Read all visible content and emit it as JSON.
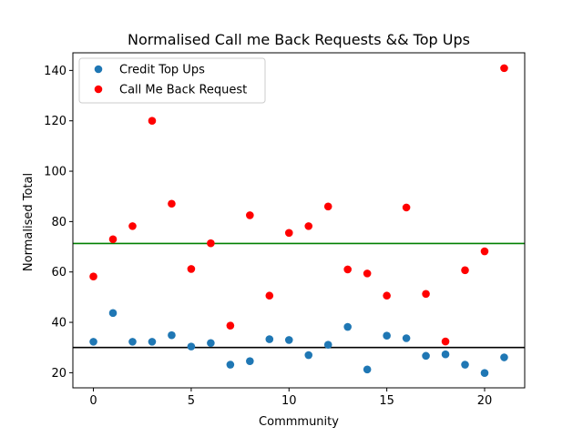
{
  "chart_data": {
    "type": "scatter",
    "title": "Normalised Call me Back Requests && Top Ups",
    "xlabel": "Commmunity",
    "ylabel": "Normalised Total",
    "xlim": [
      -1.05,
      22.05
    ],
    "ylim": [
      14,
      147
    ],
    "xticks": [
      0,
      5,
      10,
      15,
      20
    ],
    "yticks": [
      20,
      40,
      60,
      80,
      100,
      120,
      140
    ],
    "grid": false,
    "legend_position": "upper-left",
    "series": [
      {
        "name": "Credit Top Ups",
        "color": "#1f77b4",
        "x": [
          0,
          1,
          2,
          3,
          4,
          5,
          6,
          7,
          8,
          9,
          10,
          11,
          12,
          13,
          14,
          15,
          16,
          17,
          18,
          19,
          20,
          21
        ],
        "y": [
          32.3,
          43.7,
          32.3,
          32.3,
          34.9,
          30.4,
          31.8,
          23.2,
          24.6,
          33.3,
          33.0,
          27.0,
          31.1,
          38.2,
          21.3,
          34.7,
          33.7,
          26.7,
          27.3,
          23.2,
          19.9,
          26.1
        ]
      },
      {
        "name": "Call Me Back Request",
        "color": "#ff0000",
        "x": [
          0,
          1,
          2,
          3,
          4,
          5,
          6,
          7,
          8,
          9,
          10,
          11,
          12,
          13,
          14,
          15,
          16,
          17,
          18,
          19,
          20,
          21
        ],
        "y": [
          58.2,
          73.0,
          78.2,
          120.0,
          87.1,
          61.2,
          71.4,
          38.7,
          82.5,
          50.6,
          75.5,
          78.2,
          86.0,
          61.0,
          59.4,
          50.6,
          85.6,
          51.3,
          32.4,
          60.7,
          68.2,
          140.9
        ]
      }
    ],
    "hlines": [
      {
        "y": 71.3,
        "color": "#008000"
      },
      {
        "y": 30.0,
        "color": "#000000"
      }
    ]
  }
}
